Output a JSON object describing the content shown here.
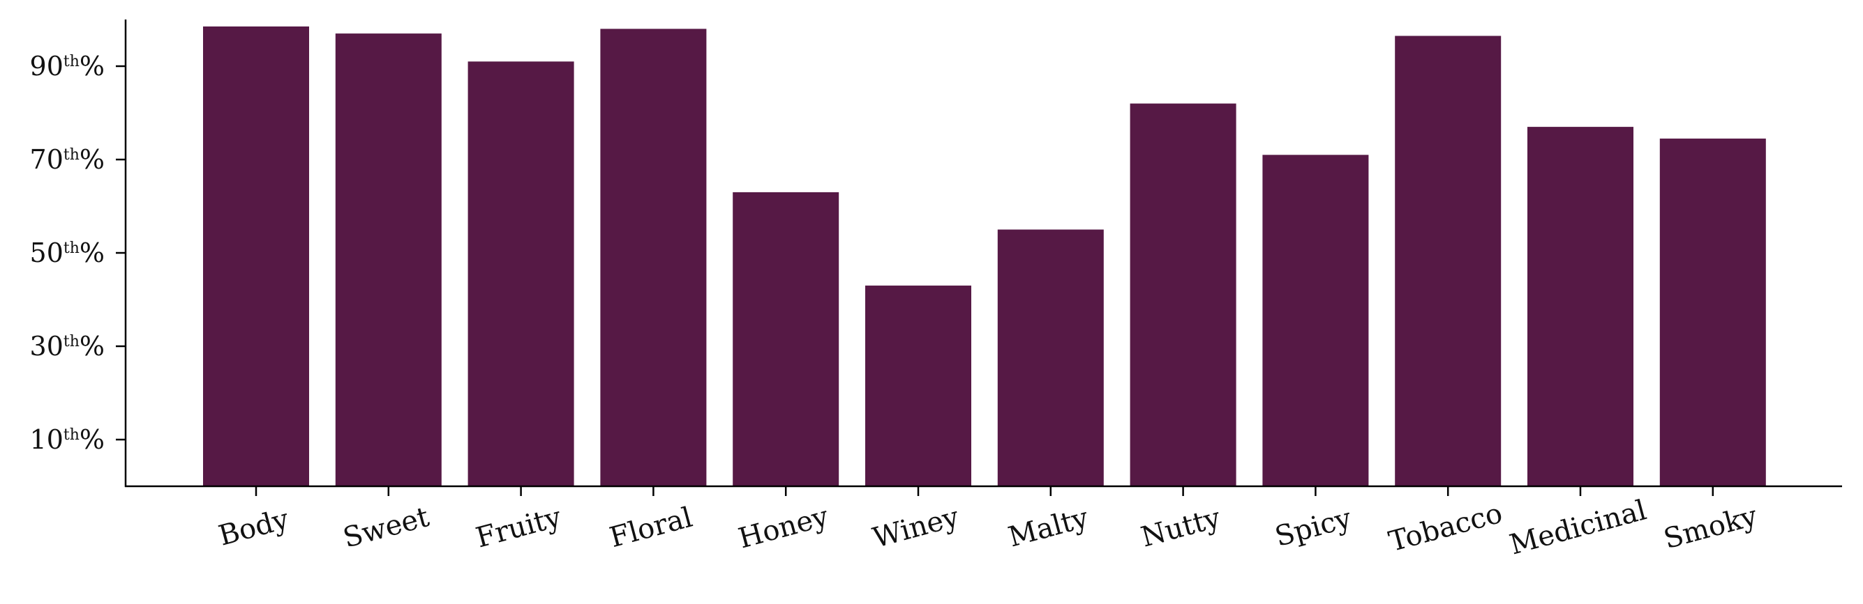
{
  "chart_data": {
    "type": "bar",
    "categories": [
      "Body",
      "Sweet",
      "Fruity",
      "Floral",
      "Honey",
      "Winey",
      "Malty",
      "Nutty",
      "Spicy",
      "Tobacco",
      "Medicinal",
      "Smoky"
    ],
    "values": [
      98.5,
      97,
      91,
      98,
      63,
      43,
      55,
      82,
      71,
      96.5,
      77,
      74.5
    ],
    "yticks": [
      10,
      30,
      50,
      70,
      90
    ],
    "ytick_labels": [
      {
        "num": "10",
        "sup": "th",
        "pct": "%"
      },
      {
        "num": "30",
        "sup": "th",
        "pct": "%"
      },
      {
        "num": "50",
        "sup": "th",
        "pct": "%"
      },
      {
        "num": "70",
        "sup": "th",
        "pct": "%"
      },
      {
        "num": "90",
        "sup": "th",
        "pct": "%"
      }
    ],
    "ylim": [
      0,
      100
    ],
    "bar_color": "#561945",
    "grid": false,
    "legend": "none"
  }
}
